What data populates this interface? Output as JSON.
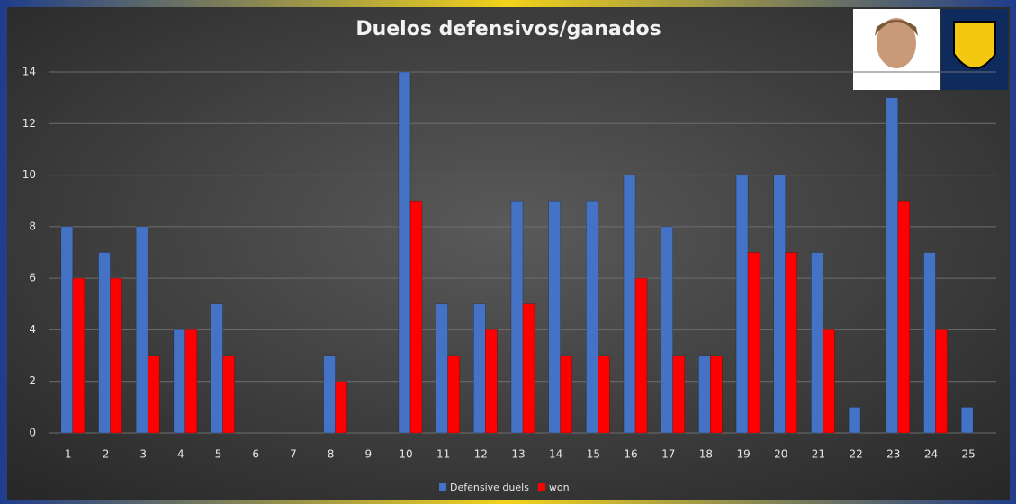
{
  "chart_data": {
    "type": "bar",
    "title": "Duelos defensivos/ganados",
    "categories": [
      "1",
      "2",
      "3",
      "4",
      "5",
      "6",
      "7",
      "8",
      "9",
      "10",
      "11",
      "12",
      "13",
      "14",
      "15",
      "16",
      "17",
      "18",
      "19",
      "20",
      "21",
      "22",
      "23",
      "24",
      "25"
    ],
    "series": [
      {
        "name": "Defensive duels",
        "color": "#4472c4",
        "values": [
          8,
          7,
          8,
          4,
          5,
          0,
          0,
          3,
          0,
          14,
          5,
          5,
          9,
          9,
          9,
          10,
          8,
          3,
          10,
          10,
          7,
          1,
          13,
          7,
          1
        ]
      },
      {
        "name": "won",
        "color": "#ff0000",
        "values": [
          6,
          6,
          3,
          4,
          3,
          0,
          0,
          2,
          0,
          9,
          3,
          4,
          5,
          3,
          3,
          6,
          3,
          3,
          7,
          7,
          4,
          0,
          9,
          4,
          0
        ]
      }
    ],
    "ylim": [
      0,
      14
    ],
    "yticks": [
      0,
      2,
      4,
      6,
      8,
      10,
      12,
      14
    ],
    "grid": true,
    "legend": "bottom"
  }
}
